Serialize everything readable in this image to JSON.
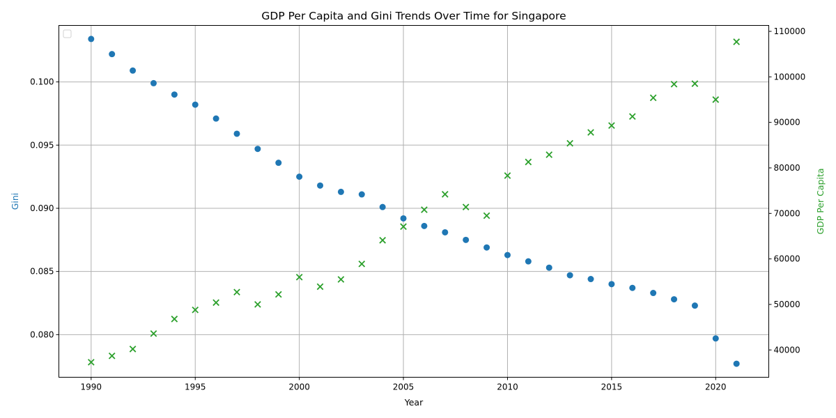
{
  "chart_data": {
    "type": "scatter",
    "title": "GDP Per Capita and Gini Trends Over Time for Singapore",
    "xlabel": "Year",
    "ylabel_left": "Gini",
    "ylabel_right": "GDP Per Capita",
    "x": [
      1990,
      1991,
      1992,
      1993,
      1994,
      1995,
      1996,
      1997,
      1998,
      1999,
      2000,
      2001,
      2002,
      2003,
      2004,
      2005,
      2006,
      2007,
      2008,
      2009,
      2010,
      2011,
      2012,
      2013,
      2014,
      2015,
      2016,
      2017,
      2018,
      2019,
      2020,
      2021
    ],
    "xlim": [
      1988.45,
      2022.55
    ],
    "xticks": [
      1990,
      1995,
      2000,
      2005,
      2010,
      2015,
      2020
    ],
    "grid": true,
    "legend": "top-left (empty)",
    "series": [
      {
        "axis": "left",
        "marker": "circle",
        "color": "#1f77b4",
        "ylim": [
          0.07663,
          0.10447
        ],
        "yticks": [
          "0.080",
          "0.085",
          "0.090",
          "0.095",
          "0.100"
        ],
        "values": [
          0.1034,
          0.1022,
          0.1009,
          0.0999,
          0.099,
          0.0982,
          0.0971,
          0.0959,
          0.0947,
          0.0936,
          0.0925,
          0.0918,
          0.0913,
          0.0911,
          0.0901,
          0.0892,
          0.0886,
          0.0881,
          0.0875,
          0.0869,
          0.0863,
          0.0858,
          0.0853,
          0.0847,
          0.0844,
          0.084,
          0.0837,
          0.0833,
          0.0828,
          0.0823,
          0.0797,
          0.0777
        ]
      },
      {
        "axis": "right",
        "marker": "x",
        "color": "#2ca02c",
        "ylim": [
          34000,
          111300
        ],
        "yticks": [
          "40000",
          "50000",
          "60000",
          "70000",
          "80000",
          "90000",
          "100000",
          "110000"
        ],
        "values": [
          37300,
          38700,
          40200,
          43600,
          46800,
          48800,
          50400,
          52700,
          50000,
          52200,
          56000,
          53900,
          55500,
          58900,
          64100,
          67100,
          70800,
          74200,
          71400,
          69500,
          78300,
          81300,
          82900,
          85400,
          87800,
          89300,
          91300,
          95400,
          98400,
          98500,
          95000,
          107700
        ]
      }
    ]
  }
}
